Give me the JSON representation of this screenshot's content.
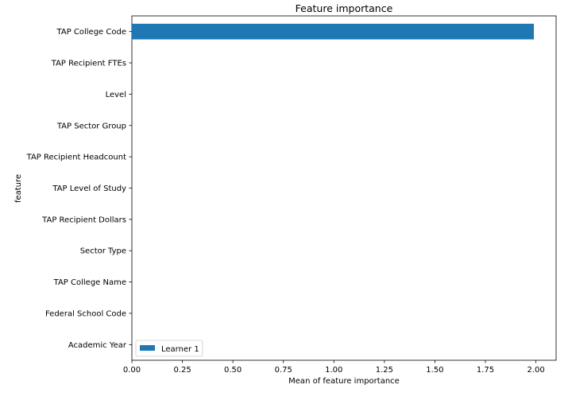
{
  "chart_data": {
    "type": "bar",
    "orientation": "horizontal",
    "title": "Feature importance",
    "xlabel": "Mean of feature importance",
    "ylabel": "feature",
    "categories": [
      "TAP College Code",
      "TAP Recipient FTEs",
      "Level",
      "TAP Sector Group",
      "TAP Recipient Headcount",
      "TAP Level of Study",
      "TAP Recipient Dollars",
      "Sector Type",
      "TAP College Name",
      "Federal School Code",
      "Academic Year"
    ],
    "series": [
      {
        "name": "Learner 1",
        "values": [
          1.99,
          0,
          0,
          0,
          0,
          0,
          0,
          0,
          0,
          0,
          0
        ],
        "color": "#1f77b4"
      }
    ],
    "xlim": [
      0,
      2.1
    ],
    "xticks": [
      "0.00",
      "0.25",
      "0.50",
      "0.75",
      "1.00",
      "1.25",
      "1.50",
      "1.75",
      "2.00"
    ],
    "grid": false,
    "legend_position": "lower-left"
  }
}
